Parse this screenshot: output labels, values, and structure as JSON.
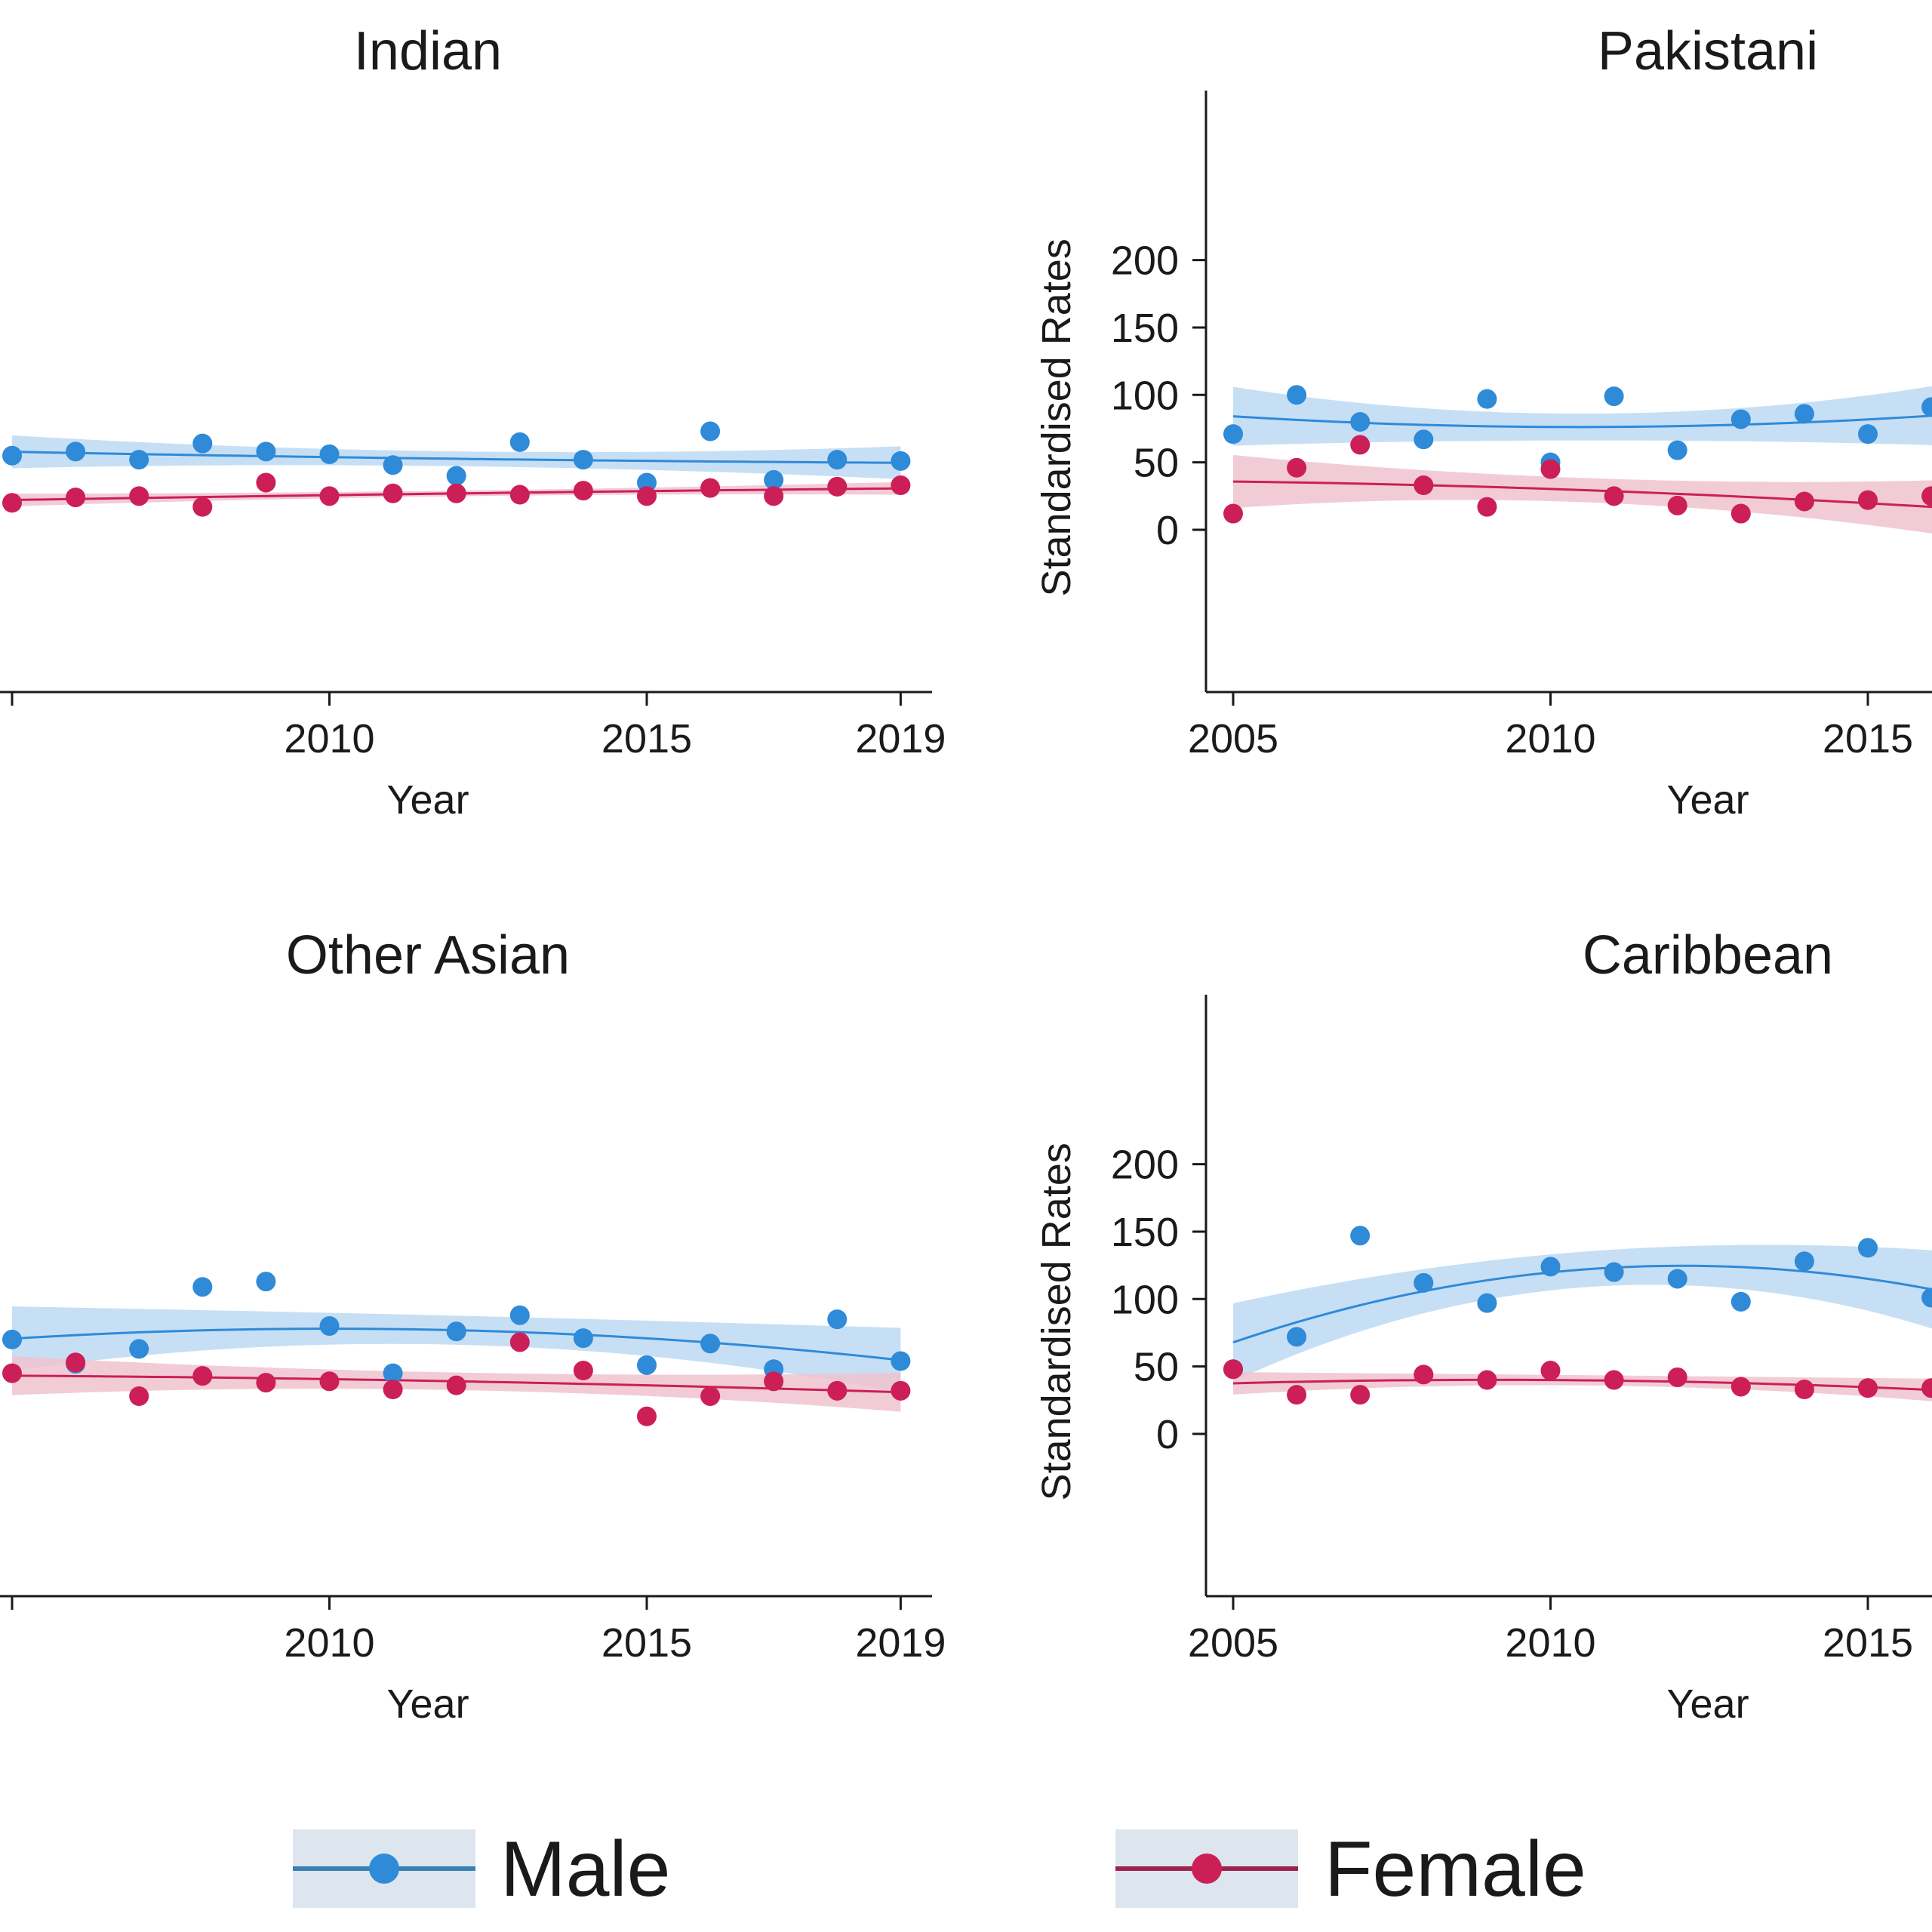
{
  "chart_data": [
    {
      "type": "scatter",
      "title": "Indian",
      "xlabel": "Year",
      "ylabel": "",
      "x_ticks_visible": [
        "2010",
        "2015",
        "2019"
      ],
      "y_ticks_visible": [],
      "xlim": [
        2005,
        2019
      ],
      "ylim": [
        -120,
        320
      ],
      "fit": "quadratic with 95% CI band",
      "series": [
        {
          "name": "Male",
          "x": [
            2005,
            2006,
            2007,
            2008,
            2009,
            2010,
            2011,
            2012,
            2013,
            2014,
            2015,
            2016,
            2017,
            2018,
            2019
          ],
          "y": [
            55,
            58,
            52,
            64,
            58,
            56,
            48,
            40,
            65,
            52,
            35,
            73,
            37,
            52,
            51
          ]
        },
        {
          "name": "Female",
          "x": [
            2005,
            2006,
            2007,
            2008,
            2009,
            2010,
            2011,
            2012,
            2013,
            2014,
            2015,
            2016,
            2017,
            2018,
            2019
          ],
          "y": [
            20,
            24,
            25,
            17,
            35,
            25,
            27,
            27,
            26,
            29,
            25,
            31,
            25,
            32,
            33
          ]
        }
      ]
    },
    {
      "type": "scatter",
      "title": "Pakistani",
      "xlabel": "Year",
      "ylabel": "Standardised Rates",
      "x_ticks_visible": [
        "2005",
        "2010",
        "2015"
      ],
      "y_ticks_visible": [
        "200",
        "150",
        "100",
        "50",
        "0"
      ],
      "xlim": [
        2005,
        2019
      ],
      "ylim": [
        -120,
        320
      ],
      "fit": "quadratic with 95% CI band",
      "series": [
        {
          "name": "Male",
          "x": [
            2005,
            2006,
            2007,
            2008,
            2009,
            2010,
            2011,
            2012,
            2013,
            2014,
            2015,
            2016
          ],
          "y": [
            71,
            100,
            80,
            67,
            97,
            50,
            99,
            59,
            82,
            86,
            71,
            91
          ]
        },
        {
          "name": "Female",
          "x": [
            2005,
            2006,
            2007,
            2008,
            2009,
            2010,
            2011,
            2012,
            2013,
            2014,
            2015,
            2016
          ],
          "y": [
            12,
            46,
            63,
            33,
            17,
            45,
            25,
            18,
            12,
            21,
            22,
            25
          ]
        }
      ]
    },
    {
      "type": "scatter",
      "title": "Other Asian",
      "xlabel": "Year",
      "ylabel": "",
      "x_ticks_visible": [
        "2010",
        "2015",
        "2019"
      ],
      "y_ticks_visible": [],
      "xlim": [
        2005,
        2019
      ],
      "ylim": [
        -120,
        320
      ],
      "fit": "quadratic with 95% CI band",
      "series": [
        {
          "name": "Male",
          "x": [
            2005,
            2006,
            2007,
            2008,
            2009,
            2010,
            2011,
            2012,
            2013,
            2014,
            2015,
            2016,
            2017,
            2018,
            2019
          ],
          "y": [
            70,
            52,
            63,
            109,
            113,
            80,
            45,
            76,
            88,
            71,
            51,
            67,
            48,
            85,
            54
          ]
        },
        {
          "name": "Female",
          "x": [
            2005,
            2006,
            2007,
            2008,
            2009,
            2010,
            2011,
            2012,
            2013,
            2014,
            2015,
            2016,
            2017,
            2018,
            2019
          ],
          "y": [
            45,
            53,
            28,
            43,
            38,
            39,
            33,
            36,
            68,
            47,
            13,
            28,
            39,
            32,
            32
          ]
        }
      ]
    },
    {
      "type": "scatter",
      "title": "Caribbean",
      "xlabel": "Year",
      "ylabel": "Standardised Rates",
      "x_ticks_visible": [
        "2005",
        "2010",
        "2015"
      ],
      "y_ticks_visible": [
        "200",
        "150",
        "100",
        "50",
        "0"
      ],
      "xlim": [
        2005,
        2019
      ],
      "ylim": [
        -120,
        320
      ],
      "fit": "quadratic with 95% CI band",
      "series": [
        {
          "name": "Male",
          "x": [
            2005,
            2006,
            2007,
            2008,
            2009,
            2010,
            2011,
            2012,
            2013,
            2014,
            2015,
            2016
          ],
          "y": [
            48,
            72,
            147,
            112,
            97,
            124,
            120,
            115,
            98,
            128,
            138,
            101
          ]
        },
        {
          "name": "Female",
          "x": [
            2005,
            2006,
            2007,
            2008,
            2009,
            2010,
            2011,
            2012,
            2013,
            2014,
            2015,
            2016
          ],
          "y": [
            48,
            29,
            29,
            44,
            40,
            47,
            40,
            42,
            35,
            33,
            34,
            34
          ]
        }
      ]
    }
  ],
  "legend": {
    "male_label": "Male",
    "female_label": "Female"
  },
  "colors": {
    "male": "#2f8ad8",
    "male_band": "#bcd9f3",
    "female": "#cc1f57",
    "female_band": "#efc3cf",
    "axis": "#1a1a1a",
    "male_legend_line": "#3a7fb5",
    "female_legend_line": "#a0224d",
    "legend_box": "#dde6ee"
  }
}
